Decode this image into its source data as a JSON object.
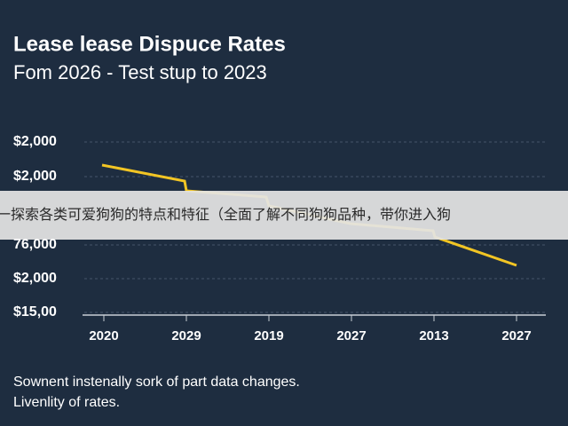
{
  "header": {
    "title": "Lease lease Dispuce Rates",
    "subtitle": "Fom 2026 - Test stup to 2023"
  },
  "y_labels": [
    "$2,000",
    "$2,000",
    "76,000",
    "$2,000",
    "$15,00"
  ],
  "x_labels": [
    "2020",
    "2029",
    "2019",
    "2027",
    "2013",
    "2027"
  ],
  "footer": [
    "Sownent instenally sork of part data changes.",
    "Livenlity of rates."
  ],
  "banner": "一探索各类可爱狗狗的特点和特征（全面了解不同狗狗品种，带你进入狗"
}
